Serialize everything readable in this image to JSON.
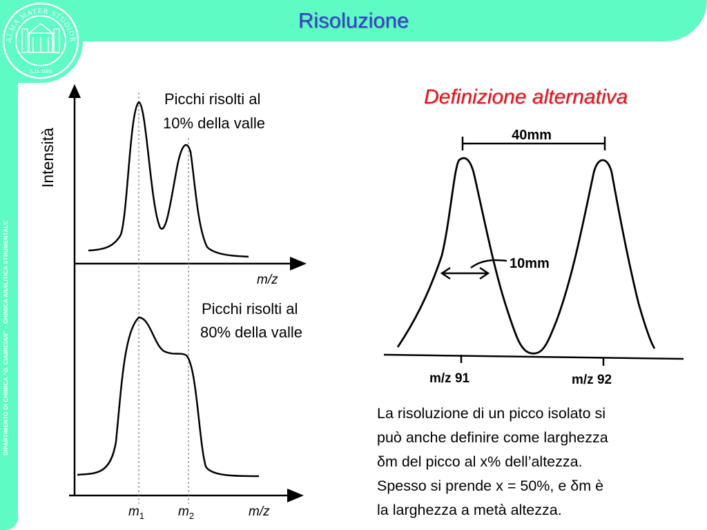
{
  "slide": {
    "title": "Risoluzione",
    "side_text_prefix": "DIPARTIMENTO DI CHIMICA “",
    "side_text_name": "G. CIAMICIAN",
    "side_text_suffix": "” – CHIMICA ANALITICA STRUMENTALE",
    "seal_text": "ALMA MATER STUDIORUM",
    "seal_year": "A.D. 1088"
  },
  "left_figure": {
    "y_axis_label": "Intensità",
    "top_caption_line1": "Picchi risolti al",
    "top_caption_line2": "10% della valle",
    "bottom_caption_line1": "Picchi risolti al",
    "bottom_caption_line2": "80% della valle",
    "x_label_top": "m/z",
    "x_label_bottom": "m/z",
    "m1_base": "m",
    "m1_sub": "1",
    "m2_base": "m",
    "m2_sub": "2"
  },
  "right_figure": {
    "title": "Definizione alternativa",
    "distance_label": "40mm",
    "width_label": "10mm",
    "peak1_label": "m/z 91",
    "peak2_label": "m/z 92"
  },
  "paragraph": {
    "lines": [
      "La risoluzione di un picco isolato si",
      "può anche definire come larghezza",
      "δm del picco al x% dell’altezza.",
      "Spesso si prende x = 50%, e δm è",
      "la larghezza a metà altezza."
    ]
  },
  "colors": {
    "frame": "#5efbc5",
    "title": "#3b3bd0",
    "alt_title": "#e8121b"
  }
}
